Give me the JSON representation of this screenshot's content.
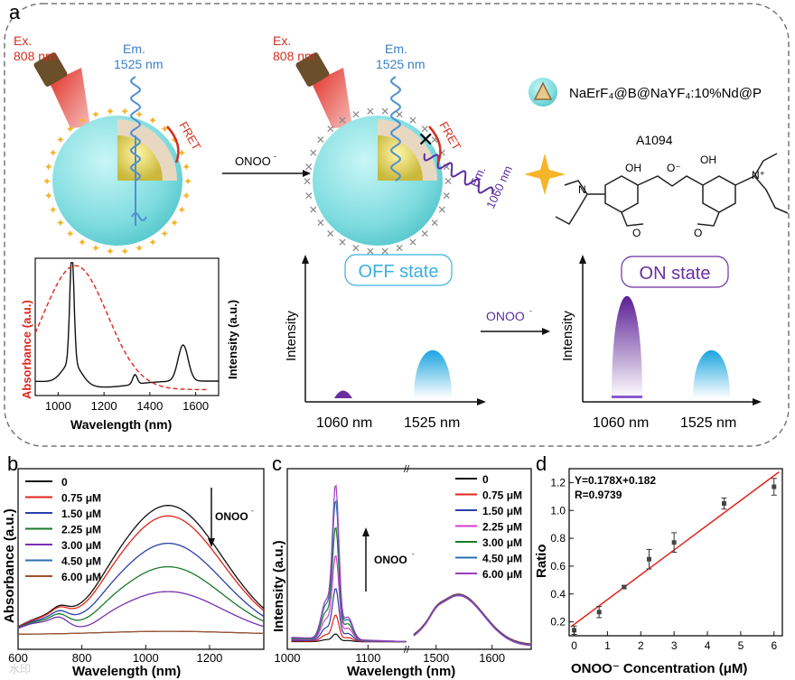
{
  "panel_labels": {
    "a": "a",
    "b": "b",
    "c": "c",
    "d": "d"
  },
  "top": {
    "ex_label_1": "Ex.",
    "ex_nm_1": "808 nm",
    "em_label_1": "Em.",
    "em_nm_1": "1525 nm",
    "fret_1": "FRET",
    "onoo_arrow_1": "ONOO",
    "ex_label_2": "Ex.",
    "ex_nm_2": "808 nm",
    "em_label_2": "Em.",
    "em_nm_2": "1525 nm",
    "fret_2": "FRET",
    "em_label_3": "Em.",
    "em_nm_3": "1060 nm",
    "legend_particle": "NaErF₄@B@NaYF₄:10%Nd@P",
    "dye_name": "A1094",
    "off_state": "OFF state",
    "on_state": "ON state",
    "onoo_arrow_2": "ONOO",
    "intensity_label": "Intensity",
    "x_1060": "1060 nm",
    "x_1525": "1525 nm"
  },
  "inset": {
    "ylabel_left": "Absorbance (a.u.)",
    "ylabel_right": "Intensity (a.u.)",
    "xlabel": "Wavelength (nm)",
    "ticks": [
      "1000",
      "1200",
      "1400",
      "1600"
    ]
  },
  "colors": {
    "red": "#e0241b",
    "black": "#111111",
    "green": "#1a7a2a",
    "blue": "#2a3fa8",
    "magenta": "#d43bd0",
    "purple": "#7a2fb0",
    "brown": "#a0522d",
    "cyan": "#8ee6e8",
    "purple_fill": "#6a2ea0",
    "blue_fill": "#1aa4e0"
  },
  "chart_data": [
    {
      "type": "line",
      "title": "",
      "xlabel": "Wavelength (nm)",
      "ylabel": "Absorbance (a.u.)",
      "xlim": [
        600,
        1370
      ],
      "xticks": [
        "600",
        "800",
        "1000",
        "1200"
      ],
      "annotation": "ONOO",
      "series": [
        {
          "name": "0",
          "color": "#111111",
          "peak": 1.0
        },
        {
          "name": "0.75 μM",
          "color": "#e0241b",
          "peak": 0.92
        },
        {
          "name": "1.50 μM",
          "color": "#2a3fa8",
          "peak": 0.71
        },
        {
          "name": "2.25 μM",
          "color": "#1a7a2a",
          "peak": 0.53
        },
        {
          "name": "3.00 μM",
          "color": "#7a2fb0",
          "peak": 0.34
        },
        {
          "name": "4.50 μM",
          "color": "#2a6fb0",
          "peak": 0.02
        },
        {
          "name": "6.00 μM",
          "color": "#a0522d",
          "peak": 0.0
        }
      ]
    },
    {
      "type": "line",
      "title": "",
      "xlabel": "Wavelength (nm)",
      "ylabel": "Intensity (a.u.)",
      "xticks": [
        "1000",
        "1100",
        "1500",
        "1600"
      ],
      "annotation": "ONOO",
      "series": [
        {
          "name": "0",
          "color": "#111111",
          "peak1060": 0.05
        },
        {
          "name": "0.75 μM",
          "color": "#e0241b",
          "peak1060": 0.17
        },
        {
          "name": "1.50 μM",
          "color": "#2a3fa8",
          "peak1060": 0.34
        },
        {
          "name": "2.25 μM",
          "color": "#d43bd0",
          "peak1060": 0.55
        },
        {
          "name": "3.00 μM",
          "color": "#1a7a2a",
          "peak1060": 0.73
        },
        {
          "name": "4.50 μM",
          "color": "#2a6fb0",
          "peak1060": 0.9
        },
        {
          "name": "6.00 μM",
          "color": "#9a3fc0",
          "peak1060": 1.0
        }
      ],
      "peak1525": 0.34
    },
    {
      "type": "scatter",
      "title": "",
      "xlabel": "ONOO⁻ Concentration (μM)",
      "ylabel": "Ratio",
      "xlim": [
        0,
        6.2
      ],
      "ylim": [
        0.1,
        1.3
      ],
      "xticks": [
        "0",
        "1",
        "2",
        "3",
        "4",
        "5",
        "6"
      ],
      "yticks": [
        "0.2",
        "0.4",
        "0.6",
        "0.8",
        "1.0",
        "1.2"
      ],
      "fit_equation": "Y=0.178X+0.182",
      "r_value": "R=0.9739",
      "x": [
        0,
        0.75,
        1.5,
        2.25,
        3.0,
        4.5,
        6.0
      ],
      "y": [
        0.14,
        0.27,
        0.45,
        0.65,
        0.77,
        1.05,
        1.17
      ],
      "err": [
        0.03,
        0.04,
        0.01,
        0.07,
        0.07,
        0.04,
        0.06
      ],
      "fit": {
        "slope": 0.178,
        "intercept": 0.182
      }
    }
  ],
  "watermark": "水印"
}
